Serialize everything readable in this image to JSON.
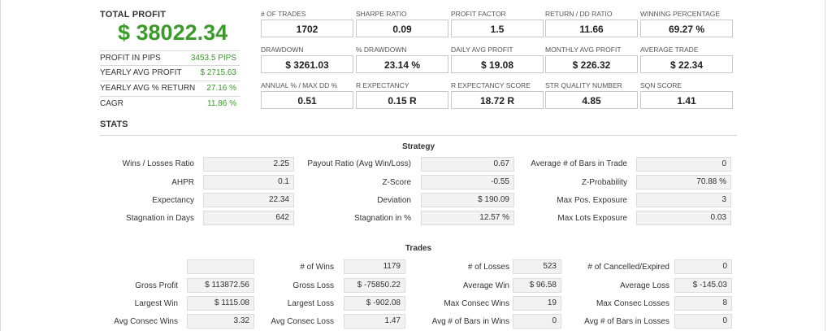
{
  "summary": {
    "total_profit_label": "TOTAL PROFIT",
    "total_profit_value": "$ 38022.34",
    "rows": [
      {
        "label": "PROFIT IN PIPS",
        "value": "3453.5 PIPS"
      },
      {
        "label": "YEARLY AVG PROFIT",
        "value": "$ 2715.63"
      },
      {
        "label": "YEARLY AVG % RETURN",
        "value": "27.16 %"
      },
      {
        "label": "CAGR",
        "value": "11.86 %"
      }
    ]
  },
  "metrics": [
    {
      "label": "# OF TRADES",
      "value": "1702"
    },
    {
      "label": "SHARPE RATIO",
      "value": "0.09"
    },
    {
      "label": "PROFIT FACTOR",
      "value": "1.5"
    },
    {
      "label": "RETURN / DD RATIO",
      "value": "11.66"
    },
    {
      "label": "WINNING PERCENTAGE",
      "value": "69.27 %"
    },
    {
      "label": "DRAWDOWN",
      "value": "$ 3261.03"
    },
    {
      "label": "% DRAWDOWN",
      "value": "23.14 %"
    },
    {
      "label": "DAILY AVG PROFIT",
      "value": "$ 19.08"
    },
    {
      "label": "MONTHLY AVG PROFIT",
      "value": "$ 226.32"
    },
    {
      "label": "AVERAGE TRADE",
      "value": "$ 22.34"
    },
    {
      "label": "ANNUAL % / MAX DD %",
      "value": "0.51"
    },
    {
      "label": "R EXPECTANCY",
      "value": "0.15 R"
    },
    {
      "label": "R EXPECTANCY SCORE",
      "value": "18.72 R"
    },
    {
      "label": "STR QUALITY NUMBER",
      "value": "4.85"
    },
    {
      "label": "SQN SCORE",
      "value": "1.41"
    }
  ],
  "stats_title": "STATS",
  "strategy": {
    "title": "Strategy",
    "rows": [
      [
        {
          "label": "Wins / Losses Ratio",
          "value": "2.25"
        },
        {
          "label": "Payout Ratio (Avg Win/Loss)",
          "value": "0.67"
        },
        {
          "label": "Average # of Bars in Trade",
          "value": "0"
        }
      ],
      [
        {
          "label": "AHPR",
          "value": "0.1"
        },
        {
          "label": "Z-Score",
          "value": "-0.55"
        },
        {
          "label": "Z-Probability",
          "value": "70.88 %"
        }
      ],
      [
        {
          "label": "Expectancy",
          "value": "22.34"
        },
        {
          "label": "Deviation",
          "value": "$ 190.09"
        },
        {
          "label": "Max Pos. Exposure",
          "value": "3"
        }
      ],
      [
        {
          "label": "Stagnation in Days",
          "value": "642"
        },
        {
          "label": "Stagnation in %",
          "value": "12.57 %"
        },
        {
          "label": "Max Lots Exposure",
          "value": "0.03"
        }
      ]
    ]
  },
  "trades": {
    "title": "Trades",
    "rows": [
      [
        {
          "label": "",
          "value": ""
        },
        {
          "label": "# of Wins",
          "value": "1179"
        },
        {
          "label": "# of Losses",
          "value": "523"
        },
        {
          "label": "# of Cancelled/Expired",
          "value": "0"
        }
      ],
      [
        {
          "label": "Gross Profit",
          "value": "$ 113872.56"
        },
        {
          "label": "Gross Loss",
          "value": "$ -75850.22"
        },
        {
          "label": "Average Win",
          "value": "$ 96.58"
        },
        {
          "label": "Average Loss",
          "value": "$ -145.03"
        }
      ],
      [
        {
          "label": "Largest Win",
          "value": "$ 1115.08"
        },
        {
          "label": "Largest Loss",
          "value": "$ -902.08"
        },
        {
          "label": "Max Consec Wins",
          "value": "19"
        },
        {
          "label": "Max Consec Losses",
          "value": "8"
        }
      ],
      [
        {
          "label": "Avg Consec Wins",
          "value": "3.32"
        },
        {
          "label": "Avg Consec Loss",
          "value": "1.47"
        },
        {
          "label": "Avg # of Bars in Wins",
          "value": "0"
        },
        {
          "label": "Avg # of Bars in Losses",
          "value": "0"
        }
      ]
    ]
  },
  "colors": {
    "accent_green": "#3a9a2a"
  }
}
